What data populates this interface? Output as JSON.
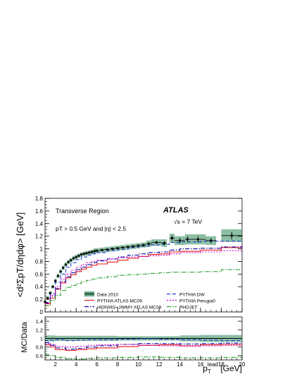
{
  "chart_data": [
    {
      "type": "line",
      "panel": "main",
      "ylabel": "<d²ΣpT/dηdφ> [GeV]",
      "ylim": [
        0,
        1.8
      ],
      "xlim": [
        1,
        20
      ],
      "yticks": [
        "0",
        "0.2",
        "0.4",
        "0.6",
        "0.8",
        "1",
        "1.2",
        "1.4",
        "1.6",
        "1.8"
      ],
      "annotations": {
        "region": "Transverse Region",
        "experiment": "ATLAS",
        "energy": "√s = 7 TeV",
        "cuts": "pT > 0.5  GeV and |η| < 2.5"
      },
      "legend_position": "bottom",
      "data_2010": {
        "name": "Data 2010",
        "x": [
          1.0,
          1.25,
          1.5,
          1.75,
          2.0,
          2.25,
          2.5,
          2.75,
          3.0,
          3.25,
          3.5,
          3.75,
          4.0,
          4.25,
          4.5,
          4.75,
          5.0,
          5.25,
          5.5,
          5.75,
          6.0,
          6.5,
          7.0,
          7.5,
          8.0,
          8.5,
          9.0,
          9.5,
          10.0,
          10.5,
          11.0,
          11.75,
          12.5,
          13.25,
          14.0,
          14.75,
          15.75,
          17.0,
          19.0
        ],
        "y": [
          0.16,
          0.22,
          0.3,
          0.4,
          0.49,
          0.57,
          0.64,
          0.7,
          0.75,
          0.79,
          0.82,
          0.85,
          0.87,
          0.89,
          0.91,
          0.92,
          0.93,
          0.94,
          0.95,
          0.96,
          0.97,
          0.98,
          0.99,
          1.0,
          1.01,
          1.02,
          1.03,
          1.04,
          1.05,
          1.06,
          1.08,
          1.1,
          1.09,
          1.17,
          1.13,
          1.15,
          1.15,
          1.13,
          1.21
        ],
        "xerr": [
          0.125,
          0.125,
          0.125,
          0.125,
          0.125,
          0.125,
          0.125,
          0.125,
          0.125,
          0.125,
          0.125,
          0.125,
          0.125,
          0.125,
          0.125,
          0.125,
          0.125,
          0.125,
          0.125,
          0.125,
          0.25,
          0.25,
          0.25,
          0.25,
          0.25,
          0.25,
          0.25,
          0.25,
          0.25,
          0.25,
          0.25,
          0.5,
          0.25,
          0.25,
          0.5,
          0.25,
          0.75,
          0.5,
          1.0
        ],
        "yerr": [
          0.015,
          0.015,
          0.015,
          0.015,
          0.015,
          0.015,
          0.015,
          0.015,
          0.015,
          0.015,
          0.015,
          0.015,
          0.015,
          0.015,
          0.015,
          0.015,
          0.015,
          0.015,
          0.015,
          0.015,
          0.015,
          0.015,
          0.015,
          0.015,
          0.015,
          0.015,
          0.015,
          0.015,
          0.015,
          0.02,
          0.02,
          0.025,
          0.03,
          0.04,
          0.04,
          0.045,
          0.05,
          0.04,
          0.06
        ],
        "syst": [
          0.02,
          0.025,
          0.03,
          0.03,
          0.035,
          0.035,
          0.035,
          0.035,
          0.035,
          0.035,
          0.035,
          0.035,
          0.035,
          0.035,
          0.035,
          0.035,
          0.035,
          0.035,
          0.035,
          0.035,
          0.04,
          0.04,
          0.04,
          0.04,
          0.04,
          0.04,
          0.04,
          0.04,
          0.04,
          0.04,
          0.05,
          0.05,
          0.06,
          0.07,
          0.07,
          0.08,
          0.08,
          0.07,
          0.1
        ],
        "color": "#2e8b57"
      },
      "series": [
        {
          "name": "PYTHIA ATLAS MC09",
          "color": "#e41a1c",
          "dash": "solid",
          "x": [
            1.0,
            1.5,
            2.0,
            2.5,
            3.0,
            3.5,
            4.0,
            4.5,
            5.0,
            5.5,
            6.0,
            7.0,
            8.0,
            9.0,
            10.0,
            11.0,
            12.0,
            13.0,
            14.0,
            16.0,
            18.0,
            20.0
          ],
          "y": [
            0.13,
            0.22,
            0.36,
            0.46,
            0.54,
            0.59,
            0.64,
            0.68,
            0.71,
            0.74,
            0.76,
            0.79,
            0.82,
            0.85,
            0.88,
            0.91,
            0.92,
            0.95,
            0.96,
            0.98,
            1.02,
            1.05
          ]
        },
        {
          "name": "HERWIG+JIMMY ATLAS MC09",
          "color": "#000099",
          "dash": "dashdot",
          "x": [
            1.0,
            1.5,
            2.0,
            2.5,
            3.0,
            3.5,
            4.0,
            4.5,
            5.0,
            5.5,
            6.0,
            7.0,
            8.0,
            9.0,
            10.0,
            11.0,
            12.0,
            13.0,
            14.0,
            16.0,
            18.0,
            20.0
          ],
          "y": [
            0.14,
            0.25,
            0.37,
            0.48,
            0.56,
            0.62,
            0.67,
            0.71,
            0.75,
            0.78,
            0.81,
            0.84,
            0.87,
            0.9,
            0.92,
            0.94,
            0.95,
            0.98,
            1.0,
            1.01,
            1.03,
            1.05
          ]
        },
        {
          "name": "PYTHIA DW",
          "color": "#1f3fd6",
          "dash": "dashed",
          "x": [
            1.0,
            1.5,
            2.0,
            2.5,
            3.0,
            3.5,
            4.0,
            4.5,
            5.0,
            5.5,
            6.0,
            7.0,
            8.0,
            9.0,
            10.0,
            11.0,
            12.0,
            13.0,
            14.0,
            16.0,
            18.0,
            20.0
          ],
          "y": [
            0.15,
            0.29,
            0.47,
            0.6,
            0.71,
            0.78,
            0.83,
            0.87,
            0.9,
            0.92,
            0.94,
            0.97,
            0.99,
            1.02,
            1.04,
            1.06,
            1.07,
            1.1,
            1.11,
            1.12,
            1.12,
            1.14
          ]
        },
        {
          "name": "PYTHIA Perugia0",
          "color": "#cc00cc",
          "dash": "dotted",
          "x": [
            1.0,
            1.5,
            2.0,
            2.5,
            3.0,
            3.5,
            4.0,
            4.5,
            5.0,
            5.5,
            6.0,
            7.0,
            8.0,
            9.0,
            10.0,
            11.0,
            12.0,
            13.0,
            14.0,
            16.0,
            18.0,
            20.0
          ],
          "y": [
            0.14,
            0.26,
            0.4,
            0.52,
            0.6,
            0.66,
            0.71,
            0.75,
            0.78,
            0.8,
            0.82,
            0.84,
            0.86,
            0.87,
            0.88,
            0.89,
            0.9,
            0.92,
            0.94,
            0.95,
            0.97,
            1.0
          ]
        },
        {
          "name": "PHOJET",
          "color": "#2ca02c",
          "dash": "dashdot",
          "x": [
            1.0,
            1.5,
            2.0,
            2.5,
            3.0,
            3.5,
            4.0,
            4.5,
            5.0,
            5.5,
            6.0,
            7.0,
            8.0,
            9.0,
            10.0,
            11.0,
            12.0,
            13.0,
            14.0,
            16.0,
            18.0,
            20.0
          ],
          "y": [
            0.1,
            0.18,
            0.26,
            0.34,
            0.39,
            0.42,
            0.45,
            0.48,
            0.5,
            0.52,
            0.54,
            0.56,
            0.58,
            0.59,
            0.6,
            0.61,
            0.62,
            0.63,
            0.63,
            0.64,
            0.67,
            0.7
          ]
        }
      ]
    },
    {
      "type": "line",
      "panel": "ratio",
      "ylabel": "MC/Data",
      "xlabel": "p_T^lead [GeV]",
      "ylim": [
        0.5,
        1.5
      ],
      "xlim": [
        1,
        20
      ],
      "yticks": [
        "0.6",
        "0.8",
        "1",
        "1.2",
        "1.4"
      ],
      "xticks": [
        "2",
        "4",
        "6",
        "8",
        "10",
        "12",
        "14",
        "16",
        "18",
        "20"
      ],
      "band": {
        "x": [
          1.0,
          2.0,
          4.0,
          6.0,
          8.0,
          10.0,
          12.0,
          14.0,
          16.0,
          18.0,
          20.0
        ],
        "low": [
          0.93,
          0.94,
          0.94,
          0.94,
          0.95,
          0.95,
          0.95,
          0.93,
          0.92,
          0.92,
          0.91
        ],
        "high": [
          1.07,
          1.06,
          1.06,
          1.06,
          1.05,
          1.05,
          1.05,
          1.07,
          1.08,
          1.08,
          1.09
        ],
        "color": "#2e8b57"
      },
      "series": [
        {
          "name": "PYTHIA ATLAS MC09",
          "color": "#e41a1c",
          "dash": "solid",
          "x": [
            1.0,
            1.5,
            2.0,
            3.0,
            4.0,
            5.0,
            6.0,
            8.0,
            10.0,
            12.0,
            14.0,
            16.0,
            18.0,
            20.0
          ],
          "y": [
            0.85,
            0.8,
            0.74,
            0.72,
            0.74,
            0.76,
            0.78,
            0.81,
            0.84,
            0.85,
            0.83,
            0.85,
            0.86,
            0.87
          ]
        },
        {
          "name": "HERWIG+JIMMY ATLAS MC09",
          "color": "#000099",
          "dash": "dashdot",
          "x": [
            1.0,
            1.5,
            2.0,
            3.0,
            4.0,
            5.0,
            6.0,
            8.0,
            10.0,
            12.0,
            14.0,
            16.0,
            18.0,
            20.0
          ],
          "y": [
            0.9,
            0.84,
            0.78,
            0.75,
            0.77,
            0.8,
            0.83,
            0.86,
            0.88,
            0.88,
            0.87,
            0.88,
            0.89,
            0.88
          ]
        },
        {
          "name": "PYTHIA DW",
          "color": "#1f3fd6",
          "dash": "dashed",
          "x": [
            1.0,
            1.5,
            2.0,
            3.0,
            4.0,
            5.0,
            6.0,
            8.0,
            10.0,
            12.0,
            14.0,
            16.0,
            18.0,
            20.0
          ],
          "y": [
            0.95,
            0.96,
            0.97,
            0.95,
            0.96,
            0.97,
            0.97,
            0.98,
            0.99,
            0.98,
            0.97,
            0.96,
            0.95,
            0.94
          ]
        },
        {
          "name": "PYTHIA Perugia0",
          "color": "#cc00cc",
          "dash": "dotted",
          "x": [
            1.0,
            1.5,
            2.0,
            3.0,
            4.0,
            5.0,
            6.0,
            8.0,
            10.0,
            12.0,
            14.0,
            16.0,
            18.0,
            20.0
          ],
          "y": [
            0.88,
            0.86,
            0.82,
            0.8,
            0.82,
            0.84,
            0.85,
            0.86,
            0.84,
            0.83,
            0.82,
            0.83,
            0.84,
            0.84
          ]
        },
        {
          "name": "PHOJET",
          "color": "#2ca02c",
          "dash": "dashdot",
          "x": [
            1.0,
            1.5,
            2.0,
            3.0,
            4.0,
            5.0,
            6.0,
            8.0,
            10.0,
            12.0,
            14.0,
            16.0,
            18.0,
            20.0
          ],
          "y": [
            0.62,
            0.6,
            0.56,
            0.53,
            0.52,
            0.54,
            0.55,
            0.56,
            0.57,
            0.56,
            0.55,
            0.55,
            0.56,
            0.57
          ]
        }
      ]
    }
  ]
}
